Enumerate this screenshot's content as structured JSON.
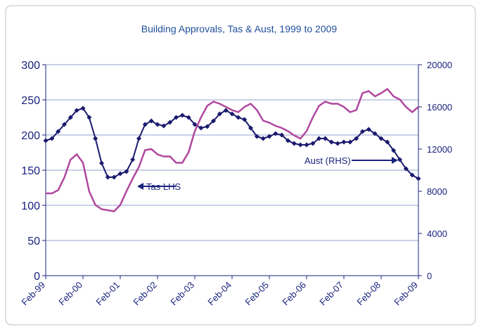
{
  "chart_data": {
    "type": "line",
    "title": "Building Approvals, Tas & Aust, 1999 to 2009",
    "categories": [
      "Feb-99",
      null,
      null,
      null,
      null,
      null,
      "Feb-00",
      null,
      null,
      null,
      null,
      null,
      "Feb-01",
      null,
      null,
      null,
      null,
      null,
      "Feb-02",
      null,
      null,
      null,
      null,
      null,
      "Feb-03",
      null,
      null,
      null,
      null,
      null,
      "Feb-04",
      null,
      null,
      null,
      null,
      null,
      "Feb-05",
      null,
      null,
      null,
      null,
      null,
      "Feb-06",
      null,
      null,
      null,
      null,
      null,
      "Feb-07",
      null,
      null,
      null,
      null,
      null,
      "Feb-08",
      null,
      null,
      null,
      null,
      null,
      "Feb-09"
    ],
    "series": [
      {
        "name": "Tas LHS",
        "color": "#1a1a6e",
        "axis": "y",
        "values": [
          192,
          195,
          205,
          215,
          225,
          235,
          238,
          225,
          195,
          160,
          140,
          140,
          145,
          148,
          165,
          195,
          215,
          220,
          215,
          213,
          218,
          225,
          228,
          225,
          215,
          210,
          212,
          220,
          230,
          235,
          230,
          225,
          222,
          210,
          198,
          195,
          198,
          202,
          200,
          192,
          188,
          186,
          186,
          188,
          195,
          195,
          190,
          188,
          190,
          190,
          195,
          205,
          208,
          202,
          195,
          190,
          178,
          165,
          152,
          143,
          138
        ]
      },
      {
        "name": "Aust (RHS)",
        "color": "#b0479e",
        "axis": "y2",
        "values": [
          7800,
          7800,
          8100,
          9300,
          11000,
          11500,
          10700,
          8000,
          6700,
          6300,
          6200,
          6100,
          6700,
          8000,
          9200,
          10300,
          11900,
          12000,
          11500,
          11300,
          11300,
          10700,
          10700,
          11700,
          13700,
          15000,
          16100,
          16500,
          16300,
          16000,
          15700,
          15500,
          16000,
          16300,
          15700,
          14700,
          14500,
          14200,
          14000,
          13700,
          13300,
          13000,
          13700,
          15000,
          16100,
          16500,
          16300,
          16300,
          16000,
          15500,
          15700,
          17300,
          17500,
          17000,
          17300,
          17700,
          17000,
          16700,
          16000,
          15500,
          16000
        ]
      }
    ],
    "ylim": [
      0,
      300
    ],
    "yticks": [
      0,
      50,
      100,
      150,
      200,
      250,
      300
    ],
    "y2lim": [
      0,
      20000
    ],
    "y2ticks": [
      0,
      4000,
      8000,
      12000,
      16000,
      20000
    ],
    "grid": true
  }
}
